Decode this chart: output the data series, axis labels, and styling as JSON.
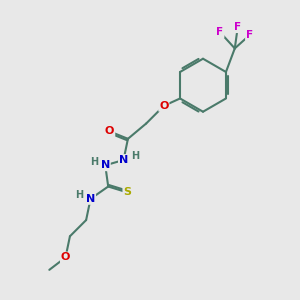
{
  "background_color": "#e8e8e8",
  "bond_color": "#4a7a6a",
  "atom_colors": {
    "O": "#dd0000",
    "N": "#0000cc",
    "S": "#aaaa00",
    "F": "#cc00cc",
    "H": "#4a7a6a"
  },
  "figsize": [
    3.0,
    3.0
  ],
  "dpi": 100
}
